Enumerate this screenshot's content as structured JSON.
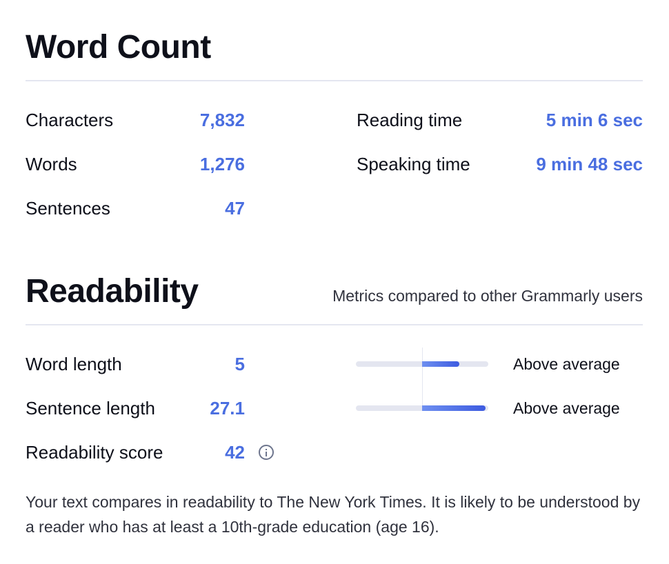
{
  "word_count": {
    "title": "Word Count",
    "left_stats": [
      {
        "label": "Characters",
        "value": "7,832"
      },
      {
        "label": "Words",
        "value": "1,276"
      },
      {
        "label": "Sentences",
        "value": "47"
      }
    ],
    "right_stats": [
      {
        "label": "Reading time",
        "value": "5 min 6 sec"
      },
      {
        "label": "Speaking time",
        "value": "9 min 48 sec"
      }
    ]
  },
  "readability": {
    "title": "Readability",
    "subtitle": "Metrics compared to other Grammarly users",
    "metrics": [
      {
        "label": "Word length",
        "value": "5",
        "status": "Above average",
        "fill_fraction": 0.28
      },
      {
        "label": "Sentence length",
        "value": "27.1",
        "status": "Above average",
        "fill_fraction": 0.48
      },
      {
        "label": "Readability score",
        "value": "42",
        "info_icon": "info-icon"
      }
    ],
    "description": "Your text compares in readability to The New York Times. It is likely to be understood by a reader who has at least a 10th-grade education (age 16)."
  },
  "colors": {
    "accent": "#4a6ee0",
    "bar_track": "#e4e6f0",
    "divider": "#e4e6f0"
  }
}
